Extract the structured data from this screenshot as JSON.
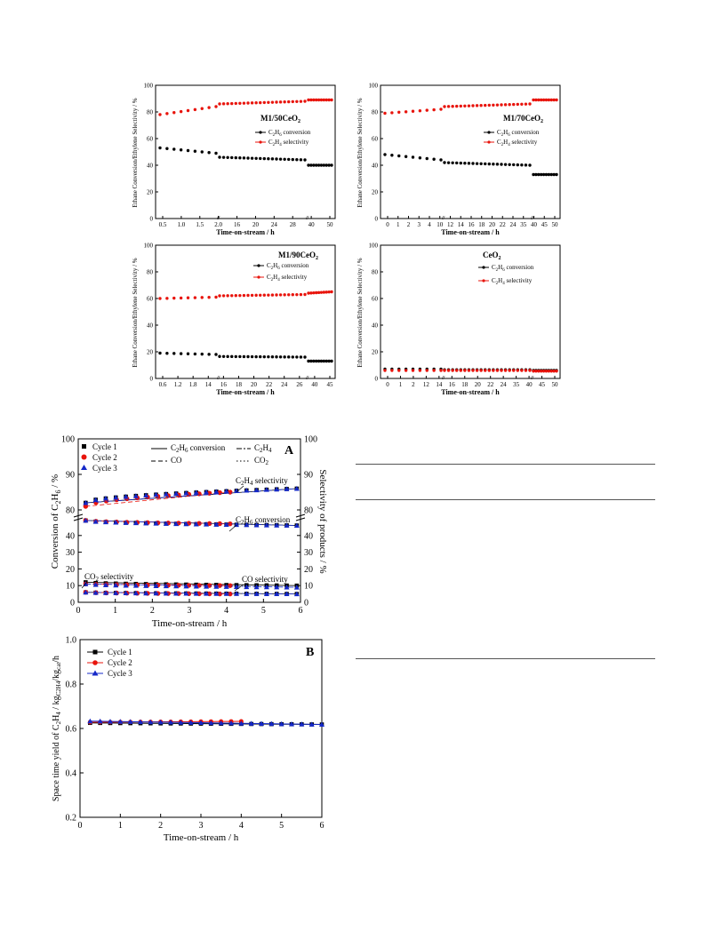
{
  "chart_data": [
    {
      "type": "scatter",
      "ylabel": "Ethane Conversion/Ethylene Selectivity / %",
      "xlabel": "Time-on-stream / h",
      "ylim": [
        0,
        100
      ],
      "y_ticks": [
        "0",
        "20",
        "40",
        "60",
        "80",
        "100"
      ],
      "x_tick_labels": [
        "0.5",
        "1.0",
        "1.5",
        "2.0",
        "16",
        "20",
        "24",
        "28",
        "40",
        "50"
      ],
      "annotation": "M1/50CeO2",
      "legend": [
        "C2H6 conversion",
        "C2H4 selectivity"
      ],
      "series": [
        {
          "name": "C2H6 conversion",
          "color": "#000000",
          "segments": [
            [
              53,
              49
            ],
            [
              46,
              44
            ],
            [
              40,
              40
            ]
          ]
        },
        {
          "name": "C2H4 selectivity",
          "color": "#e8140c",
          "segments": [
            [
              78,
              84
            ],
            [
              86,
              88
            ],
            [
              89,
              89
            ]
          ]
        }
      ]
    },
    {
      "type": "scatter",
      "ylabel": "Ethane Conversion/Ethylene Selectivity / %",
      "xlabel": "Time-on-stream / h",
      "ylim": [
        0,
        100
      ],
      "y_ticks": [
        "0",
        "20",
        "40",
        "60",
        "80",
        "100"
      ],
      "x_tick_labels": [
        "0",
        "1",
        "2",
        "3",
        "4",
        "10",
        "12",
        "14",
        "16",
        "18",
        "20",
        "22",
        "24",
        "35",
        "40",
        "45",
        "50"
      ],
      "annotation": "M1/70CeO2",
      "legend": [
        "C2H6 conversion",
        "C2H4 selectivity"
      ],
      "series": [
        {
          "name": "C2H6 conversion",
          "color": "#000000",
          "segments": [
            [
              48,
              44
            ],
            [
              42,
              40
            ],
            [
              33,
              33
            ]
          ]
        },
        {
          "name": "C2H4 selectivity",
          "color": "#e8140c",
          "segments": [
            [
              79,
              82
            ],
            [
              84,
              86
            ],
            [
              89,
              89
            ]
          ]
        }
      ]
    },
    {
      "type": "scatter",
      "ylabel": "Ethane Conversion/Ethylene Selectivity / %",
      "xlabel": "Time-on-stream / h",
      "ylim": [
        0,
        100
      ],
      "y_ticks": [
        "0",
        "20",
        "40",
        "60",
        "80",
        "100"
      ],
      "x_tick_labels": [
        "0.6",
        "1.2",
        "1.8",
        "14",
        "16",
        "18",
        "20",
        "22",
        "24",
        "26",
        "40",
        "45"
      ],
      "annotation": "M1/90CeO2",
      "legend": [
        "C2H6 conversion",
        "C2H4 selectivity"
      ],
      "series": [
        {
          "name": "C2H6 conversion",
          "color": "#000000",
          "segments": [
            [
              19,
              18
            ],
            [
              16.5,
              16
            ],
            [
              13,
              13
            ]
          ]
        },
        {
          "name": "C2H4 selectivity",
          "color": "#e8140c",
          "segments": [
            [
              60,
              61
            ],
            [
              62,
              63
            ],
            [
              64,
              65
            ]
          ]
        }
      ]
    },
    {
      "type": "scatter",
      "ylabel": "Ethane Conversion/Ethylene Selectivity / %",
      "xlabel": "Time-on-stream / h",
      "ylim": [
        0,
        100
      ],
      "y_ticks": [
        "0",
        "20",
        "40",
        "60",
        "80",
        "100"
      ],
      "x_tick_labels": [
        "0",
        "1",
        "2",
        "12",
        "14",
        "16",
        "18",
        "20",
        "22",
        "24",
        "35",
        "40",
        "45",
        "50"
      ],
      "annotation": "CeO2",
      "legend": [
        "C2H6 conversion",
        "C2H4 selectivity"
      ],
      "series": [
        {
          "name": "C2H6 conversion",
          "color": "#000000",
          "segments": [
            [
              7,
              7
            ],
            [
              6.5,
              6.5
            ],
            [
              6,
              6
            ]
          ]
        },
        {
          "name": "C2H4 selectivity",
          "color": "#e8140c",
          "segments": [
            [
              6,
              6
            ],
            [
              6,
              6
            ],
            [
              5.5,
              5.5
            ]
          ]
        }
      ]
    },
    {
      "type": "scatter",
      "panel_label": "A",
      "xlabel": "Time-on-stream / h",
      "ylabel_left": "Conversion of C2H6 / %",
      "ylabel_right": "Selectivity of products / %",
      "xlim": [
        0,
        6
      ],
      "x_ticks": [
        "0",
        "1",
        "2",
        "3",
        "4",
        "5",
        "6"
      ],
      "y_ticks_upper": [
        "80",
        "90",
        "100"
      ],
      "y_ticks_lower": [
        "0",
        "10",
        "20",
        "30",
        "40"
      ],
      "legend": [
        "Cycle 1",
        "Cycle 2",
        "Cycle 3",
        "C2H6 conversion",
        "CO",
        "C2H4",
        "CO2"
      ],
      "annotations": [
        "C2H4 selectivity",
        "C2H6 conversion",
        "CO2 selectivity",
        "CO selectivity"
      ],
      "series": [
        {
          "name": "Cycle 1",
          "color": "#000000",
          "c2h4": [
            82,
            86
          ],
          "c2h6": [
            49,
            46
          ],
          "co2": [
            12,
            10
          ],
          "co": [
            6,
            5
          ]
        },
        {
          "name": "Cycle 2",
          "color": "#e8140c",
          "c2h4": [
            81,
            85
          ],
          "c2h6": [
            49,
            47
          ],
          "co2": [
            11,
            10
          ],
          "co": [
            6,
            5
          ]
        },
        {
          "name": "Cycle 3",
          "color": "#1428c8",
          "c2h4": [
            82,
            86
          ],
          "c2h6": [
            49,
            46
          ],
          "co2": [
            11,
            9
          ],
          "co": [
            6,
            5
          ]
        }
      ]
    },
    {
      "type": "line",
      "panel_label": "B",
      "xlabel": "Time-on-stream / h",
      "ylabel": "Space time yield of C2H4 / kgC2H4/kgcat/h",
      "xlim": [
        0,
        6
      ],
      "ylim": [
        0.2,
        1.0
      ],
      "x_ticks": [
        "0",
        "1",
        "2",
        "3",
        "4",
        "5",
        "6"
      ],
      "y_ticks": [
        "0.2",
        "0.4",
        "0.6",
        "0.8",
        "1.0"
      ],
      "legend": [
        "Cycle 1",
        "Cycle 2",
        "Cycle 3"
      ],
      "series": [
        {
          "name": "Cycle 1",
          "color": "#000000",
          "x_range": [
            0.25,
            6
          ],
          "y": [
            0.625,
            0.618
          ]
        },
        {
          "name": "Cycle 2",
          "color": "#e8140c",
          "x_range": [
            0.25,
            4
          ],
          "y": [
            0.628,
            0.632
          ]
        },
        {
          "name": "Cycle 3",
          "color": "#1428c8",
          "x_range": [
            0.25,
            6
          ],
          "y": [
            0.633,
            0.618
          ]
        }
      ]
    }
  ]
}
